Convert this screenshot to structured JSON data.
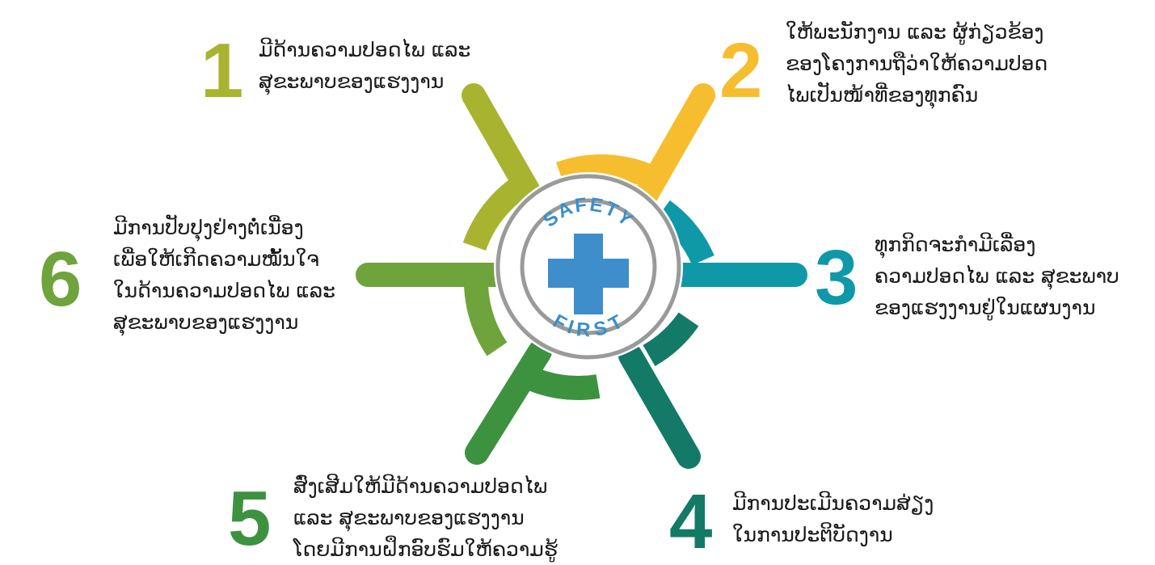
{
  "center": {
    "top_text": "SAFETY",
    "bottom_text": "FIRST",
    "icon": "plus-cross-icon",
    "colors": {
      "ring": "#9a9a9a",
      "accent": "#3d8ecb"
    }
  },
  "items": [
    {
      "number": "1",
      "color": "#a8b42f",
      "lines": [
        "ມີດ້ານຄວາມປອດໄພ ແລະ",
        "ສຸຂະພາບຂອງແຮງງານ"
      ]
    },
    {
      "number": "2",
      "color": "#f6be2e",
      "lines": [
        "ໃຫ້ພະນັກງານ ແລະ ຜູ້ກ່ຽວຂ້ອງ",
        "ຂອງໂຄງການຖືວ່າໃຫ້ຄວາມປອດ",
        "ໄພເປັນໜ້າທີ່ຂອງທຸກຄົນ"
      ]
    },
    {
      "number": "3",
      "color": "#0f99a8",
      "lines": [
        "ທຸກກິດຈະກຳມີເລື່ອງ",
        "ຄວາມປອດໄພ ແລະ ສຸຂະພາບ",
        "ຂອງແຮງງານຢູ່ໃນແຜນງານ"
      ]
    },
    {
      "number": "4",
      "color": "#127a66",
      "lines": [
        "ມີການປະເມີນຄວາມສ່ຽງ",
        "ໃນການປະຕິບັດງານ"
      ]
    },
    {
      "number": "5",
      "color": "#3d9240",
      "lines": [
        "ສົ່ງເສີມໃຫ້ມີດ້ານຄວາມປອດໄພ",
        "ແລະ ສຸຂະພາບຂອງແຮງງານ",
        "ໂດຍມີການຝຶກອົບຮົມໃຫ້ຄວາມຮູ້"
      ]
    },
    {
      "number": "6",
      "color": "#6fa33c",
      "lines": [
        "ມີການປັບປຸງຢ່າງຕໍ່ເນື່ອງ",
        "ເພື່ອໃຫ້ເກີດຄວາມໝັ້ນໃຈ",
        "ໃນດ້ານຄວາມປອດໄພ ແລະ",
        "ສຸຂະພາບຂອງແຮງງານ"
      ]
    }
  ]
}
